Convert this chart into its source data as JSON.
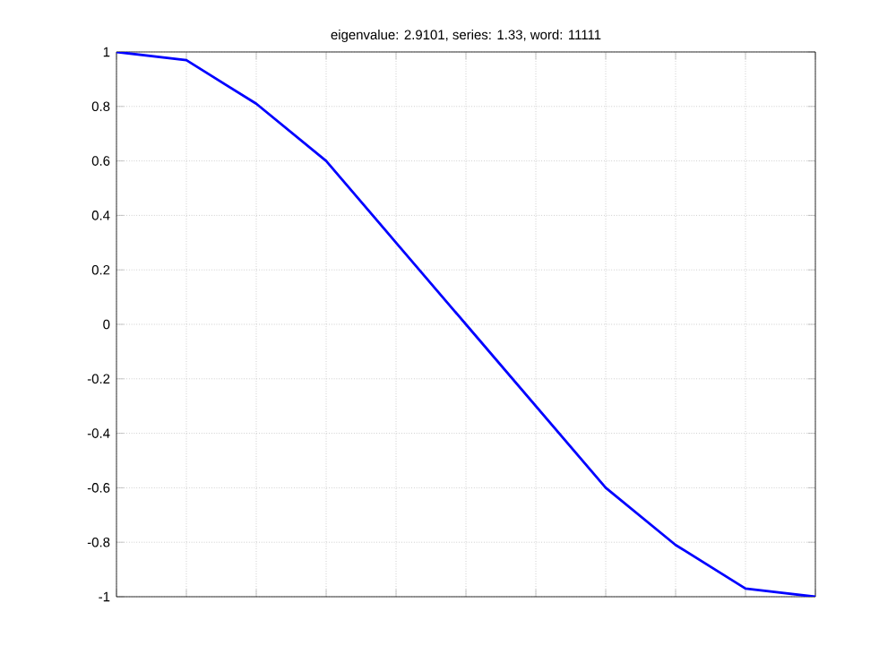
{
  "chart_data": {
    "type": "line",
    "title": "eigenvalue: 2.9101, series: 1.33, word: 11111",
    "categories": [
      null,
      null,
      null,
      null,
      null,
      null,
      null,
      null,
      null,
      null,
      null
    ],
    "series": [
      {
        "color": "#0000ff",
        "values": [
          1,
          0.97,
          0.81,
          0.6,
          0.3,
          0,
          -0.3,
          -0.6,
          -0.81,
          -0.97,
          -1
        ]
      }
    ],
    "ylim": [
      -1,
      1
    ],
    "yticks": [
      -1,
      -0.8,
      -0.6,
      -0.4,
      -0.2,
      0,
      0.2,
      0.4,
      0.6,
      0.8,
      1
    ],
    "tick_labels": "y",
    "grid": true,
    "marker": "none",
    "line_style": "solid"
  }
}
